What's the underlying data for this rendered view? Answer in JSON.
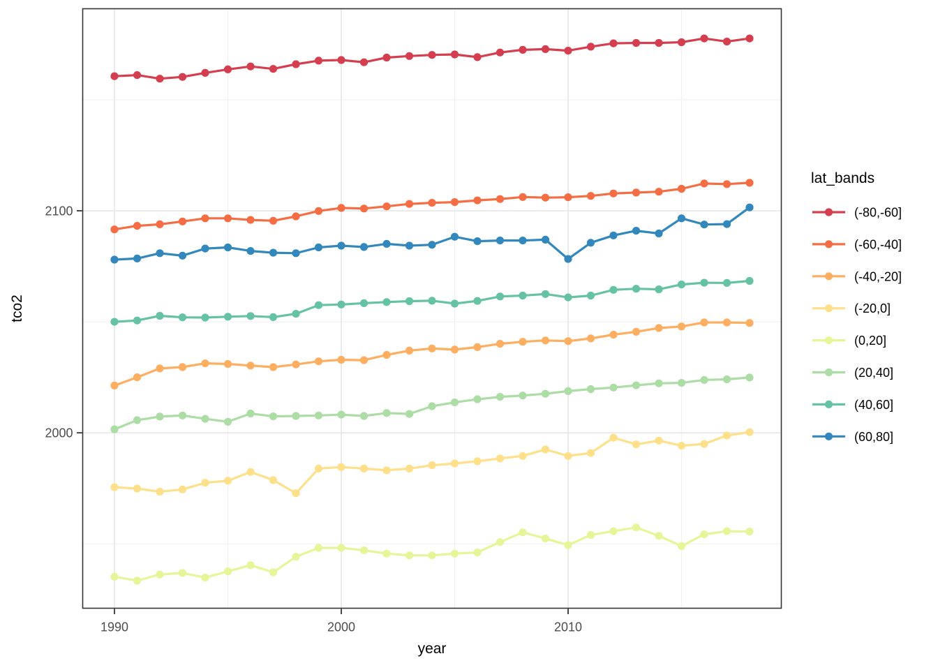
{
  "chart_data": {
    "type": "line",
    "title": "",
    "xlabel": "year",
    "ylabel": "tco2",
    "legend_title": "lat_bands",
    "legend_position": "right",
    "grid": true,
    "xlim": [
      1988.6,
      2019.4
    ],
    "ylim": [
      1921,
      2191
    ],
    "x_major_ticks": [
      1990,
      2000,
      2010
    ],
    "x_tick_labels": [
      "1990",
      "2000",
      "2010"
    ],
    "x_minor_gridlines": [
      1995,
      2005,
      2015
    ],
    "y_major_ticks": [
      2000,
      2100
    ],
    "y_tick_labels": [
      "2000",
      "2100"
    ],
    "y_minor_gridlines": [
      1950,
      2050,
      2150
    ],
    "x": [
      1990,
      1991,
      1992,
      1993,
      1994,
      1995,
      1996,
      1997,
      1998,
      1999,
      2000,
      2001,
      2002,
      2003,
      2004,
      2005,
      2006,
      2007,
      2008,
      2009,
      2010,
      2011,
      2012,
      2013,
      2014,
      2015,
      2016,
      2017,
      2018
    ],
    "series": [
      {
        "name": "(-80,-60]",
        "color": "#d53e4f",
        "values": [
          2160.6,
          2161.1,
          2159.5,
          2160.3,
          2162.1,
          2163.7,
          2165.0,
          2163.9,
          2166.0,
          2167.6,
          2167.9,
          2166.9,
          2169.0,
          2169.7,
          2170.2,
          2170.4,
          2169.2,
          2171.3,
          2172.5,
          2172.8,
          2172.1,
          2173.9,
          2175.4,
          2175.6,
          2175.6,
          2175.9,
          2177.6,
          2176.2,
          2177.6
        ]
      },
      {
        "name": "(-60,-40]",
        "color": "#f46d43",
        "values": [
          2091.6,
          2093.2,
          2093.9,
          2095.2,
          2096.6,
          2096.6,
          2095.9,
          2095.5,
          2097.5,
          2099.9,
          2101.3,
          2101.0,
          2102.0,
          2103.1,
          2103.6,
          2103.9,
          2104.7,
          2105.3,
          2106.2,
          2105.9,
          2106.1,
          2106.7,
          2107.8,
          2108.2,
          2108.6,
          2109.9,
          2112.3,
          2112.0,
          2112.6
        ]
      },
      {
        "name": "(-40,-20]",
        "color": "#fdae61",
        "values": [
          2021.3,
          2025.0,
          2029.0,
          2029.6,
          2031.3,
          2031.0,
          2030.3,
          2029.6,
          2030.8,
          2032.2,
          2032.9,
          2032.7,
          2035.1,
          2037.0,
          2038.0,
          2037.5,
          2038.6,
          2040.1,
          2041.0,
          2041.6,
          2041.3,
          2042.5,
          2044.2,
          2045.5,
          2047.2,
          2047.9,
          2049.7,
          2049.7,
          2049.5
        ]
      },
      {
        "name": "(-20,0]",
        "color": "#fee08b",
        "values": [
          1975.5,
          1974.9,
          1973.5,
          1974.5,
          1977.5,
          1978.4,
          1982.4,
          1978.7,
          1972.8,
          1983.9,
          1984.6,
          1983.9,
          1983.1,
          1983.9,
          1985.4,
          1986.2,
          1987.2,
          1988.5,
          1989.6,
          1992.5,
          1989.6,
          1990.9,
          1997.8,
          1994.8,
          1996.5,
          1994.2,
          1995.0,
          1998.8,
          2000.3
        ]
      },
      {
        "name": "(0,20]",
        "color": "#e6f598",
        "values": [
          1935.2,
          1933.4,
          1936.2,
          1936.9,
          1934.8,
          1937.6,
          1940.4,
          1937.2,
          1944.2,
          1948.2,
          1948.2,
          1947.1,
          1945.6,
          1944.8,
          1944.8,
          1945.6,
          1946.1,
          1950.8,
          1955.2,
          1952.4,
          1949.4,
          1954.0,
          1955.7,
          1957.4,
          1953.6,
          1949.0,
          1954.3,
          1955.7,
          1955.5
        ]
      },
      {
        "name": "(20,40]",
        "color": "#abdda4",
        "values": [
          2001.6,
          2005.7,
          2007.3,
          2007.8,
          2006.3,
          2005.0,
          2008.7,
          2007.4,
          2007.6,
          2007.8,
          2008.2,
          2007.6,
          2008.9,
          2008.5,
          2012.0,
          2013.7,
          2015.1,
          2016.2,
          2016.8,
          2017.6,
          2018.8,
          2019.7,
          2020.4,
          2021.4,
          2022.3,
          2022.5,
          2023.8,
          2024.1,
          2024.9
        ]
      },
      {
        "name": "(40,60]",
        "color": "#66c2a5",
        "values": [
          2050.0,
          2050.6,
          2052.7,
          2052.0,
          2051.9,
          2052.3,
          2052.6,
          2052.1,
          2053.6,
          2057.5,
          2057.8,
          2058.4,
          2058.9,
          2059.3,
          2059.5,
          2058.2,
          2059.4,
          2061.4,
          2061.8,
          2062.5,
          2061.0,
          2061.8,
          2064.4,
          2064.9,
          2064.6,
          2066.8,
          2067.6,
          2067.5,
          2068.4
        ]
      },
      {
        "name": "(60,80]",
        "color": "#3288bd",
        "values": [
          2078.0,
          2078.5,
          2080.9,
          2079.8,
          2083.0,
          2083.5,
          2081.9,
          2081.1,
          2080.9,
          2083.5,
          2084.3,
          2083.7,
          2085.1,
          2084.3,
          2084.7,
          2088.3,
          2086.3,
          2086.6,
          2086.6,
          2087.0,
          2078.3,
          2085.6,
          2088.9,
          2091.0,
          2089.8,
          2096.6,
          2093.8,
          2094.0,
          2101.5
        ]
      }
    ]
  },
  "theme_colors": {
    "panel_background": "#ffffff",
    "panel_border": "#333333",
    "grid_major": "#e8e8e8",
    "grid_minor": "#f2f2f2",
    "tick_mark": "#333333",
    "tick_label": "#4d4d4d",
    "axis_title": "#000000",
    "legend_text": "#000000"
  }
}
